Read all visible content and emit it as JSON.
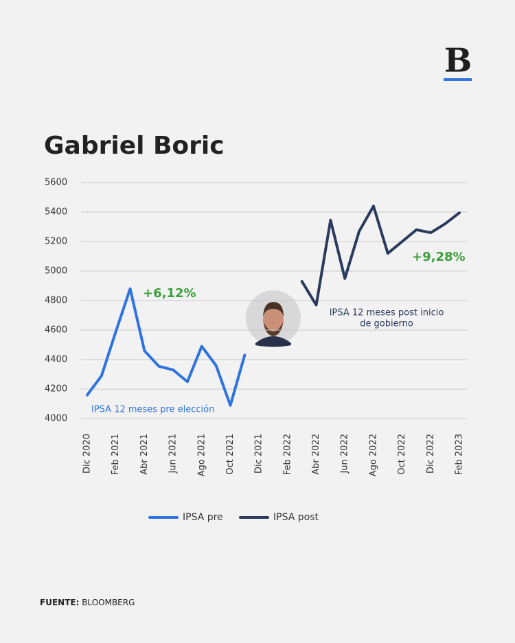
{
  "logo": "B",
  "footer": {
    "label": "FUENTE:",
    "value": "BLOOMBERG"
  },
  "chart_data": {
    "type": "line",
    "title": "Gabriel Boric",
    "categories": [
      "Dic 2020",
      null,
      "Feb 2021",
      null,
      "Abr 2021",
      null,
      "Jun 2021",
      null,
      "Ago 2021",
      null,
      "Oct 2021",
      null,
      "Dic 2021",
      null,
      "Feb 2022",
      null,
      "Abr 2022",
      null,
      "Jun 2022",
      null,
      "Ago 2022",
      null,
      "Oct 2022",
      null,
      "Dic 2022",
      null,
      "Feb 2023"
    ],
    "series": [
      {
        "name": "IPSA pre",
        "color": "#2f73e0",
        "values": [
          4160,
          4290,
          4590,
          4880,
          4460,
          4355,
          4330,
          4250,
          4490,
          4360,
          4090,
          4430,
          null,
          null,
          null,
          null,
          null,
          null,
          null,
          null,
          null,
          null,
          null,
          null,
          null,
          null,
          null
        ]
      },
      {
        "name": "IPSA post",
        "color": "#2a3b5e",
        "values": [
          null,
          null,
          null,
          null,
          null,
          null,
          null,
          null,
          null,
          null,
          null,
          null,
          null,
          null,
          null,
          4930,
          4770,
          5345,
          4950,
          5270,
          5440,
          5120,
          5200,
          5280,
          5260,
          5320,
          5395
        ]
      }
    ],
    "ylim": [
      4000,
      5600
    ],
    "yticks": [
      4000,
      4200,
      4400,
      4600,
      4800,
      5000,
      5200,
      5400,
      5600
    ],
    "grid": true,
    "legend": "bottom",
    "annotations": {
      "pre_change": "+6,12%",
      "post_change": "+9,28%",
      "pre_label": "IPSA 12 meses pre elección",
      "post_label": [
        "IPSA 12 meses post inicio",
        "de gobierno"
      ]
    }
  }
}
